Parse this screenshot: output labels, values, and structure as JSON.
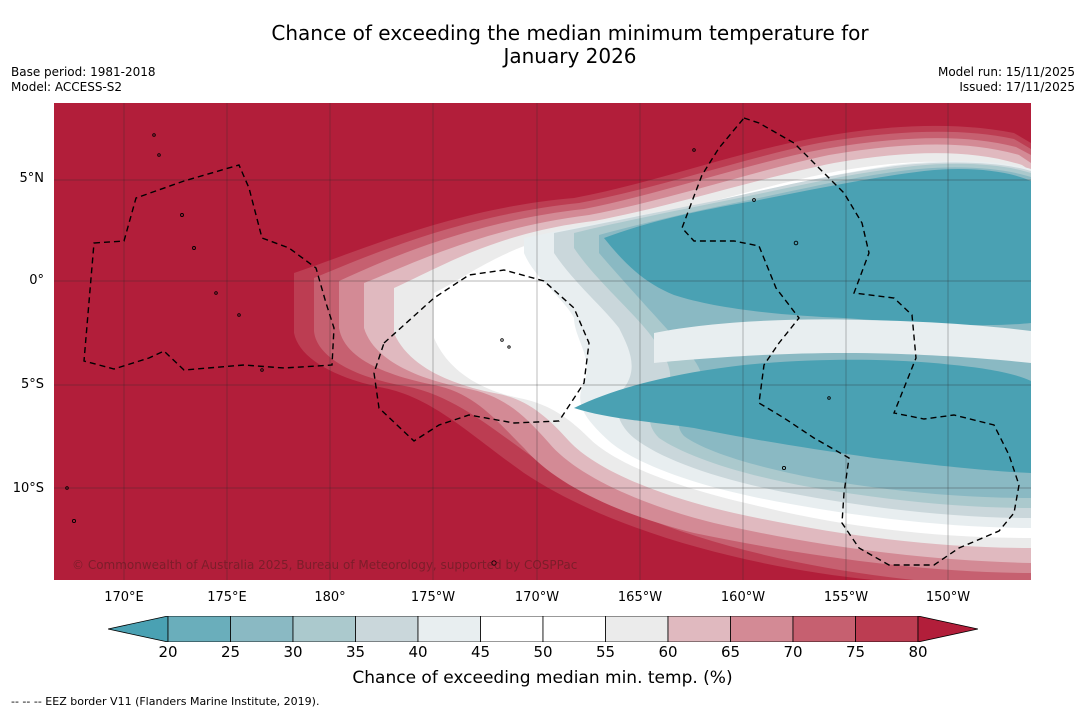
{
  "title_line1": "Chance of exceeding the median minimum temperature for",
  "title_line2": "January 2026",
  "meta_left": {
    "base_period": "Base period: 1981-2018",
    "model": "Model: ACCESS-S2"
  },
  "meta_right": {
    "model_run": "Model run: 15/11/2025",
    "issued": "Issued: 17/11/2025"
  },
  "lat_labels": [
    "5°N",
    "0°",
    "5°S",
    "10°S"
  ],
  "lon_labels": [
    "170°E",
    "175°E",
    "180°",
    "175°W",
    "170°W",
    "165°W",
    "160°W",
    "155°W",
    "150°W"
  ],
  "copyright": "© Commonwealth of Australia 2025, Bureau of Meteorology, supported by COSPPac",
  "colorbar": {
    "ticks": [
      "20",
      "25",
      "30",
      "35",
      "40",
      "45",
      "50",
      "55",
      "60",
      "65",
      "70",
      "75",
      "80"
    ],
    "label": "Chance of exceeding median min. temp. (%)",
    "colors": [
      "#4aa1b3",
      "#6aaebb",
      "#8ab9c3",
      "#abc9cd",
      "#cad7db",
      "#e8eef0",
      "#ffffff",
      "#ffffff",
      "#ebebeb",
      "#e0b9bf",
      "#d38a95",
      "#c66070",
      "#bc3d52",
      "#b21e3a"
    ]
  },
  "footnote": "--  --  -- EEZ border V11 (Flanders Marine Institute, 2019)."
}
